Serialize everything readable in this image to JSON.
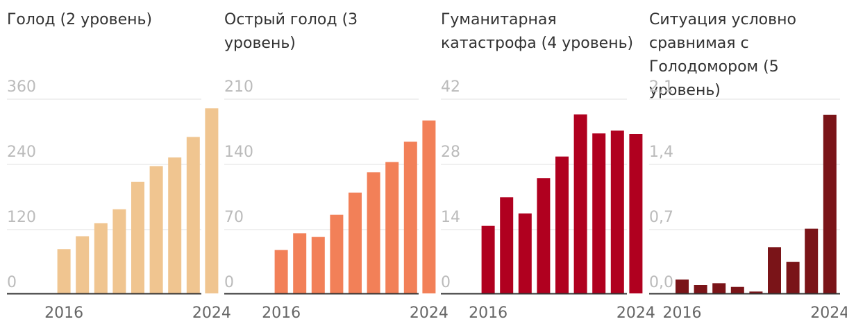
{
  "chart_data": [
    {
      "type": "bar",
      "title": "Голод (2 уровень)",
      "y_ticks": [
        "0",
        "120",
        "240",
        "360"
      ],
      "ylim": [
        0,
        360
      ],
      "x": [
        2015,
        2016,
        2017,
        2018,
        2019,
        2020,
        2021,
        2022,
        2023,
        2024
      ],
      "x_tick_labels": {
        "1": "2016",
        "9": "2024"
      },
      "values": [
        0,
        82,
        106,
        130,
        156,
        207,
        236,
        252,
        290,
        343
      ],
      "color": "#f0c590"
    },
    {
      "type": "bar",
      "title": "Острый голод (3 уровень)",
      "y_ticks": [
        "0",
        "70",
        "140",
        "210"
      ],
      "ylim": [
        0,
        210
      ],
      "x": [
        2015,
        2016,
        2017,
        2018,
        2019,
        2020,
        2021,
        2022,
        2023,
        2024
      ],
      "x_tick_labels": {
        "1": "2016",
        "9": "2024"
      },
      "values": [
        0,
        47,
        65,
        61,
        85,
        109,
        131,
        142,
        164,
        187
      ],
      "color": "#f28058"
    },
    {
      "type": "bar",
      "title": "Гуманитарная катастрофа (4 уровень)",
      "y_ticks": [
        "0",
        "14",
        "28",
        "42"
      ],
      "ylim": [
        0,
        42
      ],
      "x": [
        2015,
        2016,
        2017,
        2018,
        2019,
        2020,
        2021,
        2022,
        2023,
        2024
      ],
      "x_tick_labels": {
        "1": "2016",
        "9": "2024"
      },
      "values": [
        0,
        14.6,
        20.8,
        17.3,
        24.9,
        29.6,
        38.7,
        34.6,
        35.2,
        34.5
      ],
      "color": "#b0001f"
    },
    {
      "type": "bar",
      "title": "Ситуация условно сравнимая с Голодомором (5 уровень)",
      "y_ticks": [
        "0,0",
        "0,7",
        "1,4",
        "2,1"
      ],
      "ylim": [
        0,
        2.1
      ],
      "x": [
        2016,
        2017,
        2018,
        2019,
        2020,
        2021,
        2022,
        2023,
        2024
      ],
      "x_tick_labels": {
        "0": "2016",
        "8": "2024"
      },
      "values": [
        0.15,
        0.09,
        0.11,
        0.07,
        0.02,
        0.5,
        0.34,
        0.7,
        1.93
      ],
      "color": "#7a1418"
    }
  ]
}
